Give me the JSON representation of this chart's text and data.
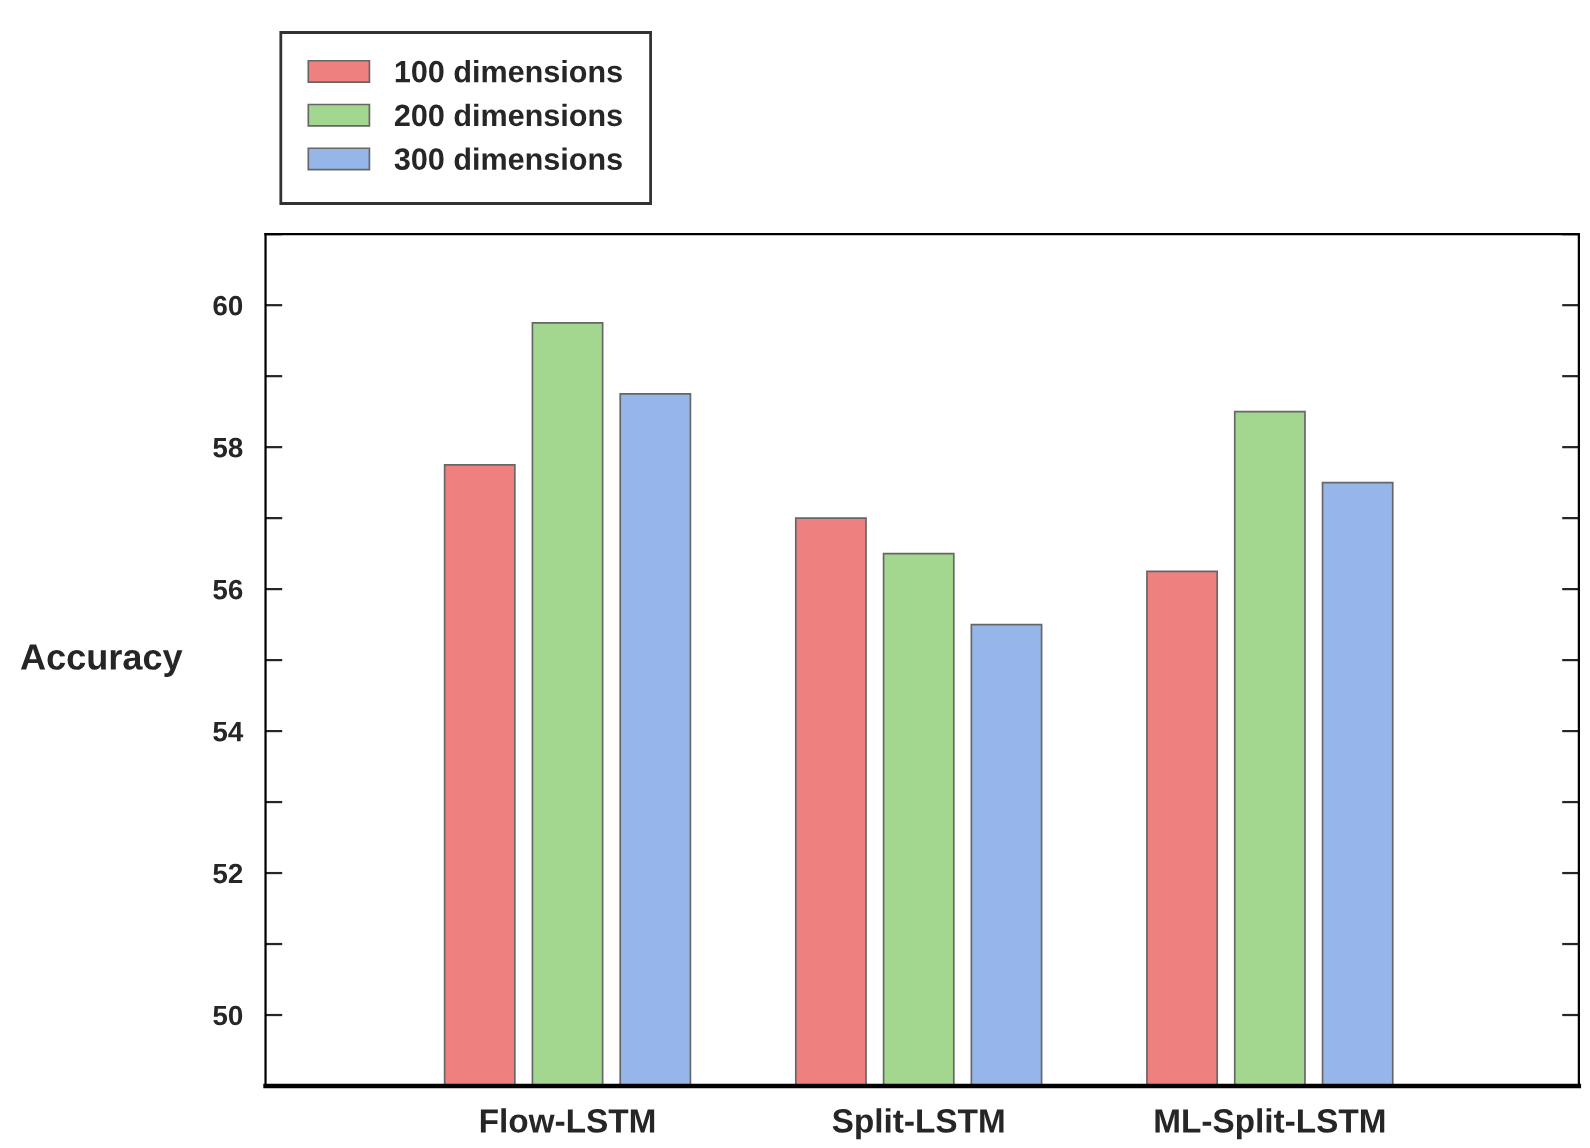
{
  "chart_data": {
    "type": "bar",
    "ylabel": "Accuracy",
    "categories": [
      "Flow-LSTM",
      "Split-LSTM",
      "ML-Split-LSTM"
    ],
    "series": [
      {
        "name": "100 dimensions",
        "color": "#ee8080",
        "values": [
          57.75,
          57,
          56.25
        ]
      },
      {
        "name": "200 dimensions",
        "color": "#a3d68e",
        "values": [
          59.75,
          56.5,
          58.5
        ]
      },
      {
        "name": "300 dimensions",
        "color": "#96b6ea",
        "values": [
          58.75,
          55.5,
          57.5
        ]
      }
    ],
    "ylim": [
      49,
      61
    ],
    "yticks": [
      {
        "value": 49,
        "label": null
      },
      50,
      {
        "value": 51,
        "label": null
      },
      52,
      {
        "value": 53,
        "label": null
      },
      54,
      {
        "value": 55,
        "label": null
      },
      56,
      {
        "value": 57,
        "label": null
      },
      58,
      {
        "value": 59,
        "label": null
      },
      60,
      {
        "value": 61,
        "label": null
      }
    ],
    "grid": false,
    "legend": "top left"
  }
}
